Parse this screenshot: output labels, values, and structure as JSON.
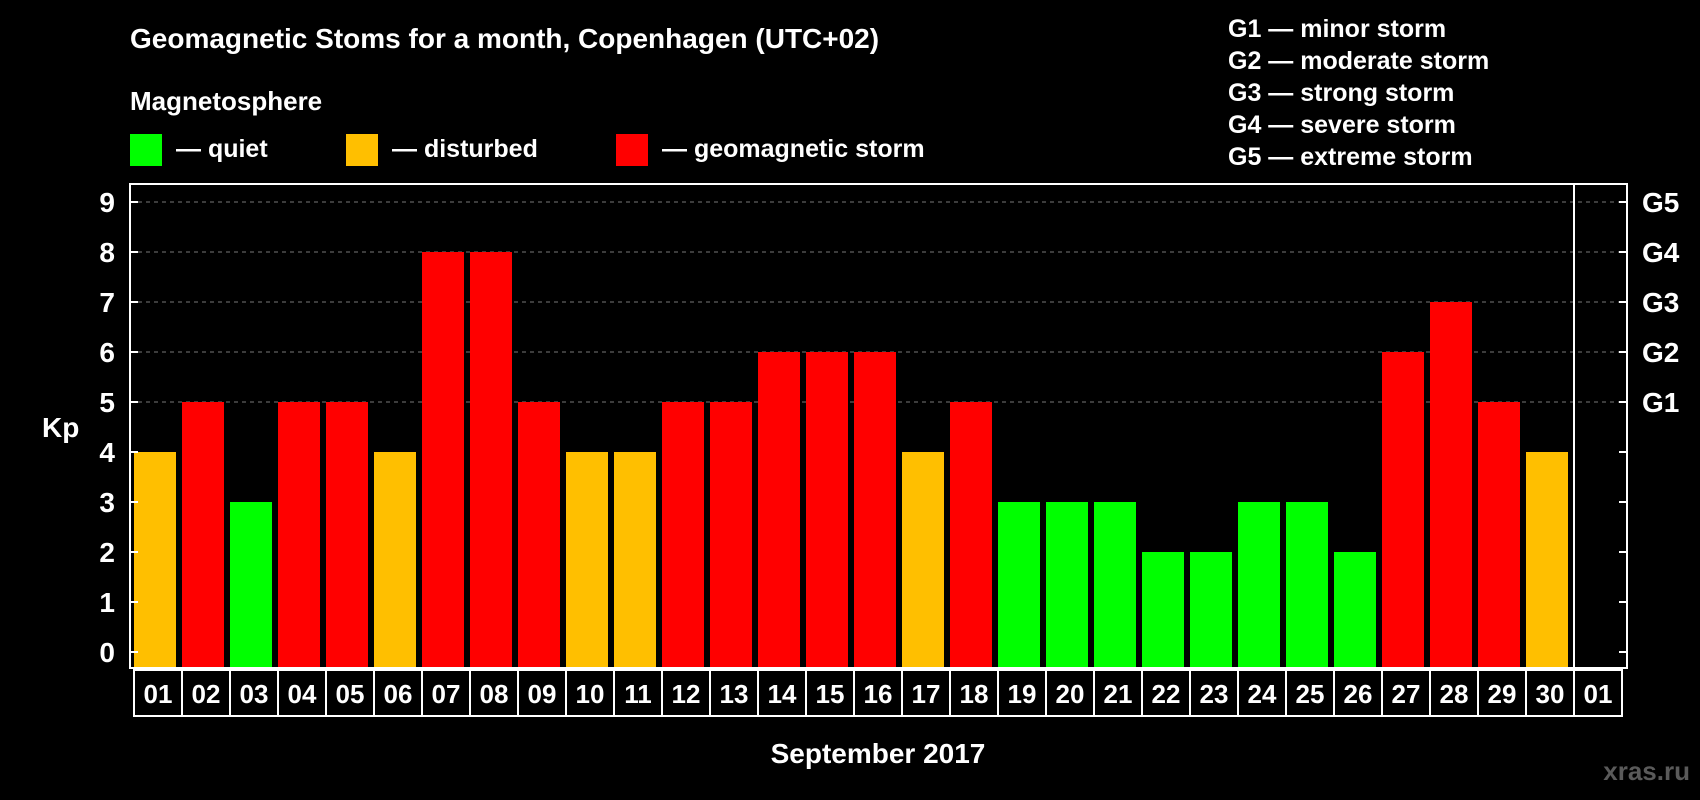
{
  "chart_data": {
    "type": "bar",
    "title": "Geomagnetic Stoms for a month, Copenhagen (UTC+02)",
    "legend_title": "Magnetosphere",
    "legend": [
      {
        "label": "— quiet",
        "color": "#00ff00"
      },
      {
        "label": "— disturbed",
        "color": "#ffbf00"
      },
      {
        "label": "— geomagnetic storm",
        "color": "#ff0000"
      }
    ],
    "storm_scale": [
      "G1 — minor storm",
      "G2 — moderate storm",
      "G3 — strong storm",
      "G4 — severe storm",
      "G5 — extreme storm"
    ],
    "ylabel": "Kp",
    "xlabel": "September 2017",
    "ylim": [
      0,
      9
    ],
    "y_ticks": [
      0,
      1,
      2,
      3,
      4,
      5,
      6,
      7,
      8,
      9
    ],
    "right_ticks": [
      {
        "value": 5,
        "label": "G1"
      },
      {
        "value": 6,
        "label": "G2"
      },
      {
        "value": 7,
        "label": "G3"
      },
      {
        "value": 8,
        "label": "G4"
      },
      {
        "value": 9,
        "label": "G5"
      }
    ],
    "categories": [
      "01",
      "02",
      "03",
      "04",
      "05",
      "06",
      "07",
      "08",
      "09",
      "10",
      "11",
      "12",
      "13",
      "14",
      "15",
      "16",
      "17",
      "18",
      "19",
      "20",
      "21",
      "22",
      "23",
      "24",
      "25",
      "26",
      "27",
      "28",
      "29",
      "30",
      "01"
    ],
    "values": [
      4,
      5,
      3,
      5,
      5,
      4,
      8,
      8,
      5,
      4,
      4,
      5,
      5,
      6,
      6,
      6,
      4,
      5,
      3,
      3,
      3,
      2,
      2,
      3,
      3,
      2,
      6,
      7,
      5,
      4,
      null
    ],
    "grid": "dashed horizontal",
    "watermark": "xras.ru"
  }
}
